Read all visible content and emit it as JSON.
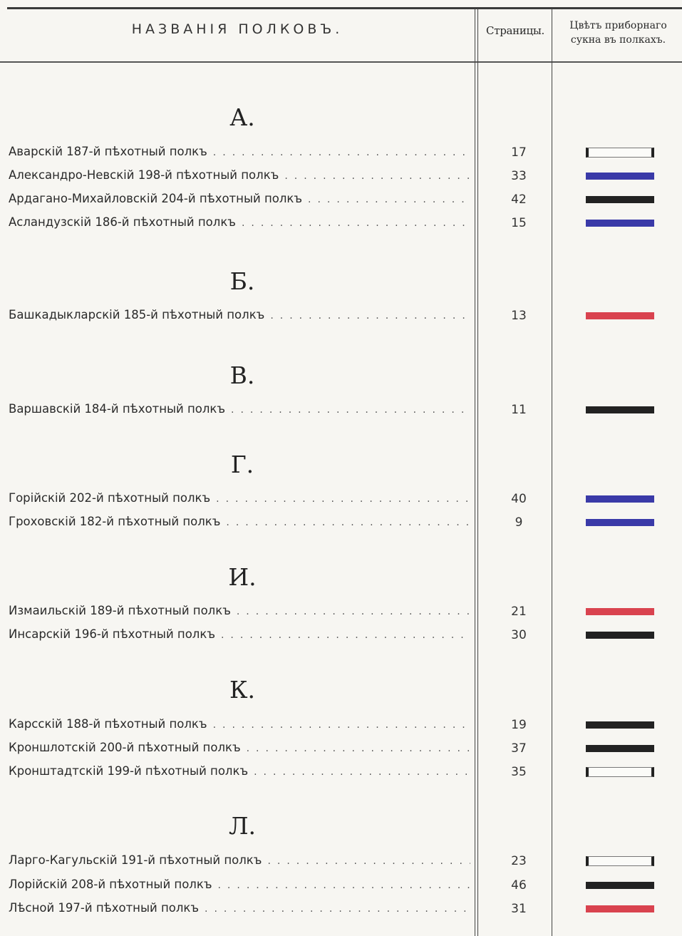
{
  "header": {
    "names_title": "НАЗВАНIЯ ПОЛКОВЪ.",
    "pages_title": "Страницы.",
    "color_title_line1": "Цвѣтъ приборнаго",
    "color_title_line2": "сукна въ полкахъ."
  },
  "colors": {
    "blue": "#3a3aa8",
    "black": "#222222",
    "red": "#d9434f",
    "white": "#fbfbf8"
  },
  "sections": [
    {
      "letter": "А.",
      "entries": [
        {
          "name": "Аварскiй 187-й пѣхотный полкъ",
          "page": "17",
          "color": "white"
        },
        {
          "name": "Александро-Невскiй 198-й пѣхотный полкъ",
          "page": "33",
          "color": "blue"
        },
        {
          "name": "Ардагано-Михайловскiй 204-й пѣхотный полкъ",
          "page": "42",
          "color": "black"
        },
        {
          "name": "Асландузскiй 186-й пѣхотный полкъ",
          "page": "15",
          "color": "blue"
        }
      ]
    },
    {
      "letter": "Б.",
      "entries": [
        {
          "name": "Башкадыкларскiй 185-й пѣхотный полкъ",
          "page": "13",
          "color": "red"
        }
      ]
    },
    {
      "letter": "В.",
      "entries": [
        {
          "name": "Варшавскiй 184-й пѣхотный полкъ",
          "page": "11",
          "color": "black"
        }
      ]
    },
    {
      "letter": "Г.",
      "entries": [
        {
          "name": "Горiйскiй 202-й пѣхотный полкъ",
          "page": "40",
          "color": "blue"
        },
        {
          "name": "Гроховскiй 182-й пѣхотный полкъ",
          "page": "9",
          "color": "blue"
        }
      ]
    },
    {
      "letter": "И.",
      "entries": [
        {
          "name": "Измаильскiй 189-й пѣхотный полкъ",
          "page": "21",
          "color": "red"
        },
        {
          "name": "Инсарскiй 196-й пѣхотный полкъ",
          "page": "30",
          "color": "black"
        }
      ]
    },
    {
      "letter": "К.",
      "entries": [
        {
          "name": "Карсскiй 188-й пѣхотный полкъ",
          "page": "19",
          "color": "black"
        },
        {
          "name": "Кроншлотскiй 200-й пѣхотный полкъ",
          "page": "37",
          "color": "black"
        },
        {
          "name": "Кронштадтскiй 199-й пѣхотный полкъ",
          "page": "35",
          "color": "white"
        }
      ]
    },
    {
      "letter": "Л.",
      "entries": [
        {
          "name": "Ларго-Кагульскiй 191-й пѣхотный полкъ",
          "page": "23",
          "color": "white"
        },
        {
          "name": "Лорiйскiй 208-й пѣхотный полкъ",
          "page": "46",
          "color": "black"
        },
        {
          "name": "Лѣсной 197-й пѣхотный полкъ",
          "page": "31",
          "color": "red"
        }
      ]
    }
  ]
}
